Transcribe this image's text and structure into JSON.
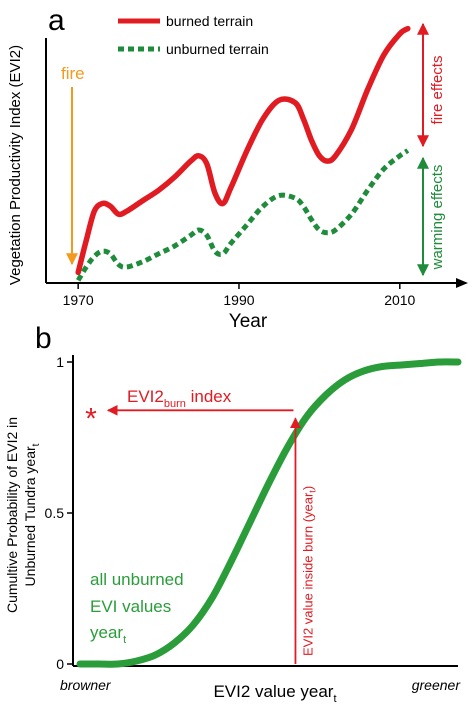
{
  "chart_data": [
    {
      "panel_label": "a",
      "type": "line",
      "ylabel": "Vegetation Productivity Index (EVI2)",
      "xlabel": "Year",
      "x_ticks": [
        1970,
        1990,
        2010
      ],
      "xlim": [
        1966,
        2015
      ],
      "ylim": [
        0,
        1
      ],
      "y_ticks_shown": false,
      "legend_position": "top-left",
      "series": [
        {
          "name": "burned terrain",
          "color": "#e01b22",
          "style": "solid",
          "points": [
            [
              1970,
              0.04
            ],
            [
              1971,
              0.16
            ],
            [
              1972,
              0.27
            ],
            [
              1973,
              0.3
            ],
            [
              1974,
              0.29
            ],
            [
              1975,
              0.26
            ],
            [
              1976,
              0.27
            ],
            [
              1978,
              0.31
            ],
            [
              1980,
              0.35
            ],
            [
              1982,
              0.4
            ],
            [
              1984,
              0.46
            ],
            [
              1985,
              0.48
            ],
            [
              1986,
              0.45
            ],
            [
              1987,
              0.34
            ],
            [
              1988,
              0.3
            ],
            [
              1989,
              0.36
            ],
            [
              1991,
              0.5
            ],
            [
              1993,
              0.62
            ],
            [
              1995,
              0.69
            ],
            [
              1997,
              0.68
            ],
            [
              1998,
              0.62
            ],
            [
              1999,
              0.54
            ],
            [
              2000,
              0.48
            ],
            [
              2001,
              0.46
            ],
            [
              2002,
              0.48
            ],
            [
              2004,
              0.58
            ],
            [
              2006,
              0.73
            ],
            [
              2008,
              0.86
            ],
            [
              2010,
              0.94
            ],
            [
              2011,
              0.96
            ]
          ]
        },
        {
          "name": "unburned terrain",
          "color": "#1e8c3a",
          "style": "dashed",
          "points": [
            [
              1970,
              0.01
            ],
            [
              1971,
              0.06
            ],
            [
              1972,
              0.1
            ],
            [
              1973,
              0.12
            ],
            [
              1974,
              0.11
            ],
            [
              1975,
              0.07
            ],
            [
              1976,
              0.06
            ],
            [
              1978,
              0.08
            ],
            [
              1980,
              0.11
            ],
            [
              1982,
              0.14
            ],
            [
              1984,
              0.18
            ],
            [
              1985,
              0.2
            ],
            [
              1986,
              0.18
            ],
            [
              1987,
              0.12
            ],
            [
              1988,
              0.11
            ],
            [
              1989,
              0.15
            ],
            [
              1991,
              0.22
            ],
            [
              1993,
              0.29
            ],
            [
              1995,
              0.33
            ],
            [
              1997,
              0.32
            ],
            [
              1998,
              0.29
            ],
            [
              1999,
              0.24
            ],
            [
              2000,
              0.2
            ],
            [
              2001,
              0.19
            ],
            [
              2002,
              0.2
            ],
            [
              2004,
              0.26
            ],
            [
              2006,
              0.35
            ],
            [
              2008,
              0.43
            ],
            [
              2010,
              0.48
            ],
            [
              2011,
              0.5
            ]
          ]
        }
      ],
      "annotations": [
        {
          "text": "fire",
          "color": "#f39a1e",
          "arrow_x": 1970
        },
        {
          "text": "fire effects",
          "color": "#e01b22",
          "between": [
            "unburned terrain",
            "burned terrain"
          ],
          "x": 2011
        },
        {
          "text": "warming effects",
          "color": "#1e8c3a",
          "between": [
            "baseline",
            "unburned terrain"
          ],
          "x": 2011
        }
      ]
    },
    {
      "panel_label": "b",
      "type": "line",
      "ylabel": "Cumultive Probability of EVI2 in Unburned Tundra year",
      "ylabel_lines": [
        "Cumultive Probability of EVI2 in",
        "Unburned Tundra year"
      ],
      "ylabel_subscript": "t",
      "xlabel": "EVI2 value year",
      "xlabel_subscript": "t",
      "x_end_labels": {
        "left": "browner",
        "right": "greener"
      },
      "y_ticks": [
        0,
        0.5,
        1
      ],
      "y_tick_labels": [
        "0",
        "0.5",
        "1"
      ],
      "ylim": [
        0,
        1
      ],
      "xlim": [
        0,
        1
      ],
      "series": [
        {
          "name": "all unburned EVI values year",
          "color": "#2a9d3a",
          "points": [
            [
              0,
              0.0
            ],
            [
              0.05,
              0.0
            ],
            [
              0.1,
              0.0
            ],
            [
              0.15,
              0.01
            ],
            [
              0.2,
              0.03
            ],
            [
              0.25,
              0.07
            ],
            [
              0.3,
              0.13
            ],
            [
              0.35,
              0.22
            ],
            [
              0.4,
              0.34
            ],
            [
              0.45,
              0.47
            ],
            [
              0.5,
              0.6
            ],
            [
              0.55,
              0.72
            ],
            [
              0.6,
              0.82
            ],
            [
              0.65,
              0.89
            ],
            [
              0.7,
              0.94
            ],
            [
              0.75,
              0.97
            ],
            [
              0.8,
              0.985
            ],
            [
              0.85,
              0.99
            ],
            [
              0.9,
              0.995
            ],
            [
              0.95,
              1.0
            ],
            [
              1.0,
              1.0
            ]
          ]
        }
      ],
      "series_label": {
        "lines": [
          "all unburned",
          "EVI values",
          "year"
        ],
        "subscript": "t",
        "color": "#2a9d3a"
      },
      "burn_marker": {
        "x": 0.57,
        "y": 0.84
      },
      "annotations": [
        {
          "text": "EVI2",
          "subscript": "burn",
          "suffix": " index",
          "color": "#e01b22"
        },
        {
          "text": "EVI2 value inside burn (year",
          "subscript": "t",
          "suffix": ")",
          "color": "#e01b22"
        },
        {
          "text": "*",
          "color": "#e01b22"
        }
      ]
    }
  ]
}
